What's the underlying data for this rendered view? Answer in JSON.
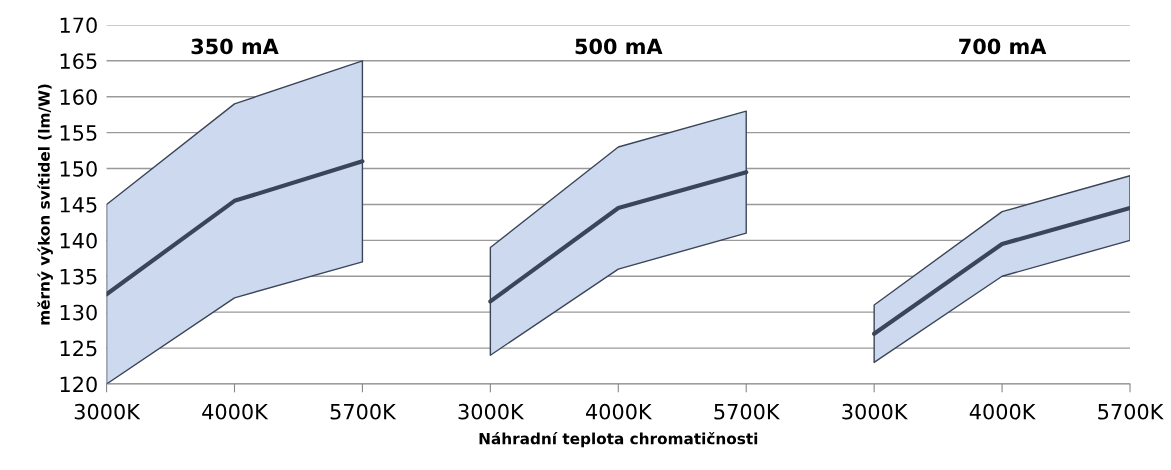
{
  "chart_data": {
    "type": "line",
    "xlabel": "Náhradní teplota chromatičnosti",
    "ylabel": "měrný výkon svítidel (lm/W)",
    "categories": [
      "3000K",
      "4000K",
      "5700K",
      "3000K",
      "4000K",
      "5700K",
      "3000K",
      "4000K",
      "5700K"
    ],
    "series": [
      {
        "color": "#3b4559",
        "values": [
          132.5,
          145.5,
          151,
          null,
          null,
          null,
          null,
          null,
          null
        ],
        "lower": [
          120,
          132,
          137,
          null,
          null,
          null,
          null,
          null,
          null
        ],
        "upper": [
          145,
          159,
          165,
          null,
          null,
          null,
          null,
          null,
          null
        ]
      },
      {
        "color": "#3b4559",
        "values": [
          null,
          null,
          null,
          131.5,
          144.5,
          149.5,
          null,
          null,
          null
        ],
        "lower": [
          null,
          null,
          null,
          124,
          136,
          141,
          null,
          null,
          null
        ],
        "upper": [
          null,
          null,
          null,
          139,
          153,
          158,
          null,
          null,
          null
        ]
      },
      {
        "color": "#3b4559",
        "values": [
          null,
          null,
          null,
          null,
          null,
          null,
          127,
          139.5,
          144.5
        ],
        "lower": [
          null,
          null,
          null,
          null,
          null,
          null,
          123,
          135,
          140
        ],
        "upper": [
          null,
          null,
          null,
          null,
          null,
          null,
          131,
          144,
          149
        ]
      }
    ],
    "annotations": [
      "350 mA",
      "500 mA",
      "700 mA"
    ],
    "ylim": [
      120,
      170
    ],
    "yticks": [
      120,
      125,
      130,
      135,
      140,
      145,
      150,
      155,
      160,
      165,
      170
    ],
    "grid": "y",
    "legend": false
  }
}
